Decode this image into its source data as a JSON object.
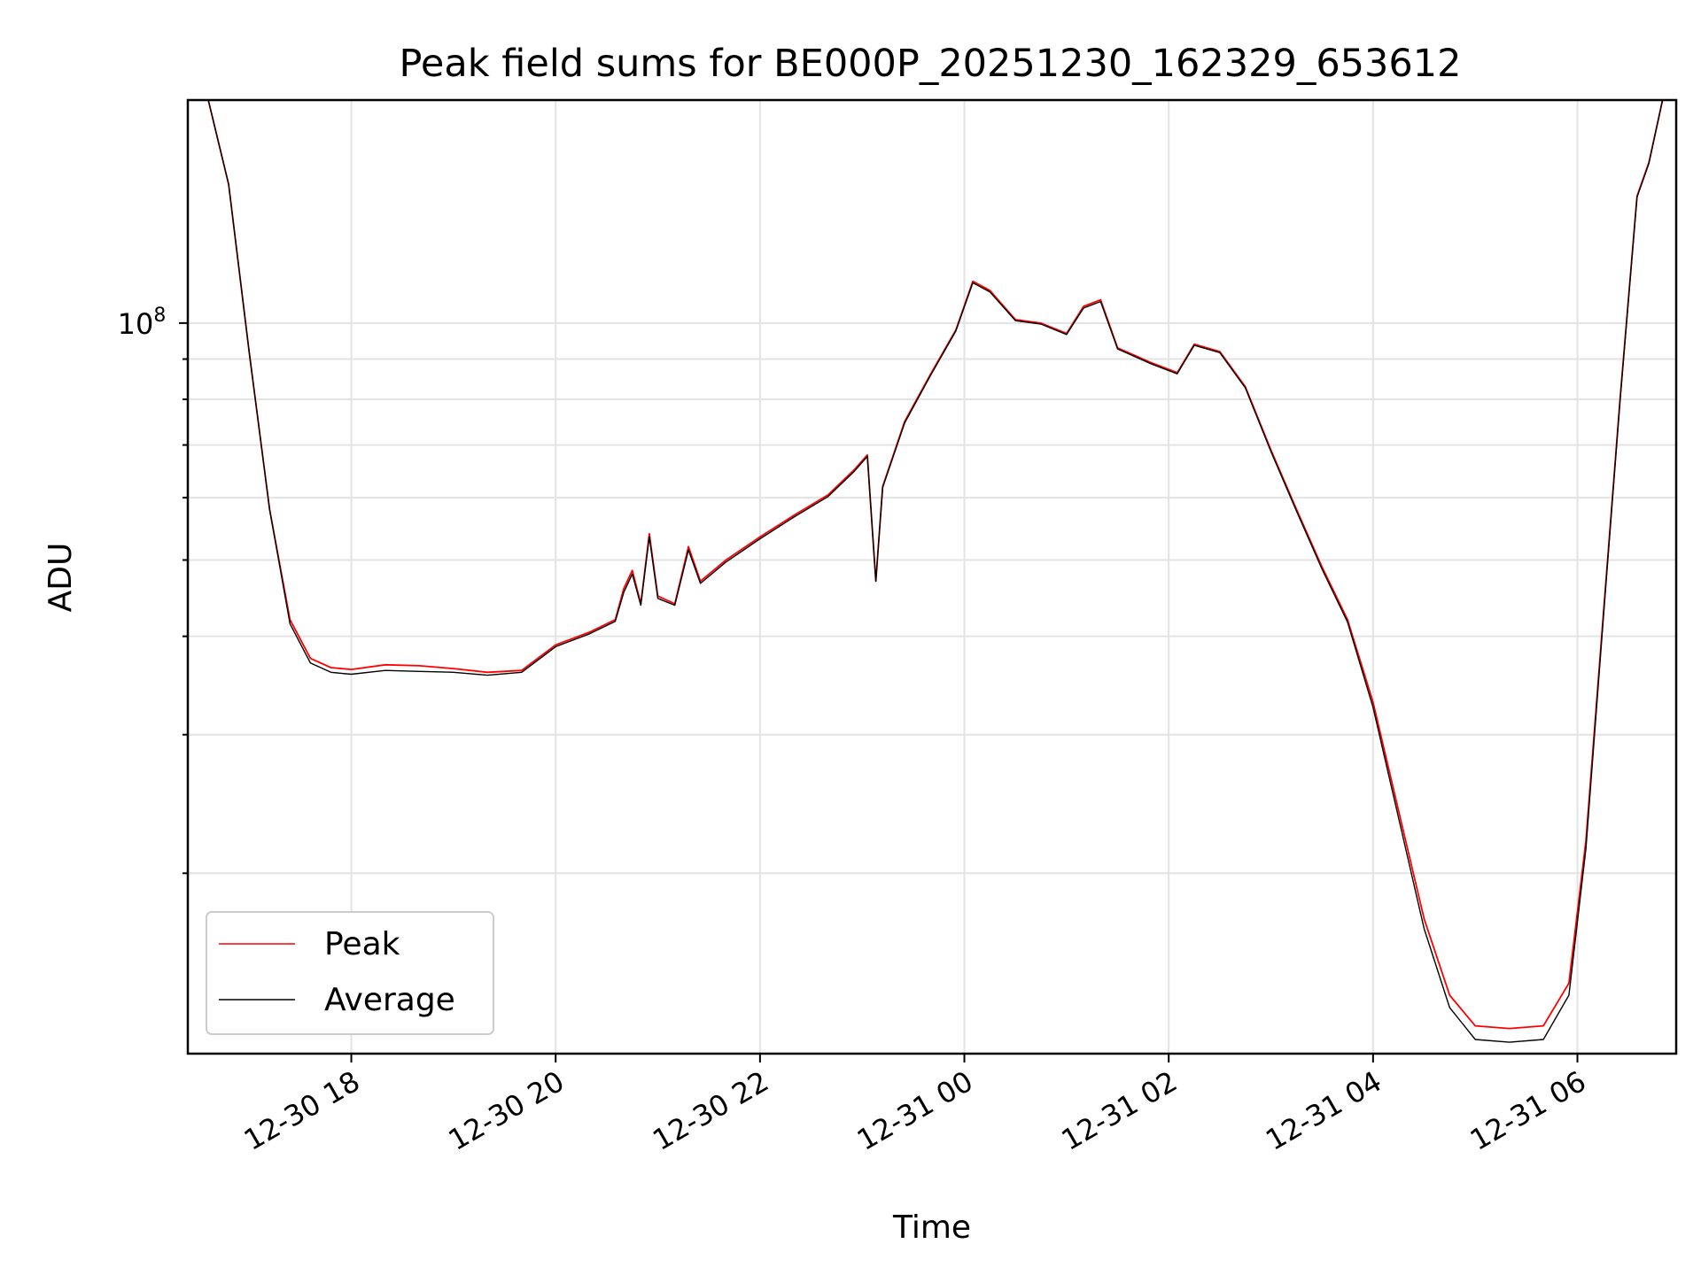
{
  "chart_data": {
    "type": "line",
    "title": "Peak field sums for BE000P_20251230_162329_653612",
    "xlabel": "Time",
    "ylabel": "ADU",
    "yscale": "log",
    "grid": true,
    "legend_position": "lower-left",
    "x_tick_labels": [
      "12-30 18",
      "12-30 20",
      "12-30 22",
      "12-31 00",
      "12-31 02",
      "12-31 04",
      "12-31 06"
    ],
    "x_ticks": [
      "2025-12-30 18:00",
      "2025-12-30 20:00",
      "2025-12-30 22:00",
      "2025-12-31 00:00",
      "2025-12-31 02:00",
      "2025-12-31 04:00",
      "2025-12-31 06:00"
    ],
    "xlim": [
      "2025-12-30 16:24",
      "2025-12-31 06:58"
    ],
    "y_tick_label": "10^8",
    "ylim": [
      11800000,
      192000000
    ],
    "series": [
      {
        "name": "Peak",
        "color": "#ff0000",
        "points": [
          [
            "2025-12-30 16:24",
            192000000
          ],
          [
            "2025-12-30 16:36",
            192000000
          ],
          [
            "2025-12-30 16:48",
            150000000
          ],
          [
            "2025-12-30 17:00",
            92000000
          ],
          [
            "2025-12-30 17:12",
            58000000
          ],
          [
            "2025-12-30 17:24",
            42000000
          ],
          [
            "2025-12-30 17:36",
            37500000
          ],
          [
            "2025-12-30 17:48",
            36500000
          ],
          [
            "2025-12-30 18:00",
            36300000
          ],
          [
            "2025-12-30 18:20",
            36800000
          ],
          [
            "2025-12-30 18:40",
            36700000
          ],
          [
            "2025-12-30 19:00",
            36400000
          ],
          [
            "2025-12-30 19:20",
            36000000
          ],
          [
            "2025-12-30 19:40",
            36200000
          ],
          [
            "2025-12-30 20:00",
            39000000
          ],
          [
            "2025-12-30 20:20",
            40500000
          ],
          [
            "2025-12-30 20:35",
            42000000
          ],
          [
            "2025-12-30 20:40",
            46000000
          ],
          [
            "2025-12-30 20:45",
            48500000
          ],
          [
            "2025-12-30 20:50",
            44000000
          ],
          [
            "2025-12-30 20:55",
            54000000
          ],
          [
            "2025-12-30 21:00",
            45000000
          ],
          [
            "2025-12-30 21:10",
            44000000
          ],
          [
            "2025-12-30 21:18",
            52000000
          ],
          [
            "2025-12-30 21:25",
            47000000
          ],
          [
            "2025-12-30 21:40",
            50000000
          ],
          [
            "2025-12-30 22:00",
            53500000
          ],
          [
            "2025-12-30 22:20",
            57000000
          ],
          [
            "2025-12-30 22:40",
            60500000
          ],
          [
            "2025-12-30 22:55",
            65000000
          ],
          [
            "2025-12-30 23:03",
            68000000
          ],
          [
            "2025-12-30 23:08",
            47000000
          ],
          [
            "2025-12-30 23:12",
            62000000
          ],
          [
            "2025-12-30 23:25",
            75000000
          ],
          [
            "2025-12-30 23:40",
            86000000
          ],
          [
            "2025-12-30 23:55",
            98000000
          ],
          [
            "2025-12-31 00:05",
            113000000
          ],
          [
            "2025-12-31 00:15",
            110000000
          ],
          [
            "2025-12-31 00:30",
            101000000
          ],
          [
            "2025-12-31 00:45",
            100000000
          ],
          [
            "2025-12-31 01:00",
            97000000
          ],
          [
            "2025-12-31 01:10",
            105000000
          ],
          [
            "2025-12-31 01:20",
            107000000
          ],
          [
            "2025-12-31 01:30",
            93000000
          ],
          [
            "2025-12-31 01:50",
            89000000
          ],
          [
            "2025-12-31 02:05",
            86500000
          ],
          [
            "2025-12-31 02:15",
            94000000
          ],
          [
            "2025-12-31 02:30",
            92000000
          ],
          [
            "2025-12-31 02:45",
            83000000
          ],
          [
            "2025-12-31 03:00",
            69000000
          ],
          [
            "2025-12-31 03:15",
            58000000
          ],
          [
            "2025-12-31 03:30",
            49000000
          ],
          [
            "2025-12-31 03:45",
            42000000
          ],
          [
            "2025-12-31 04:00",
            33000000
          ],
          [
            "2025-12-31 04:15",
            24000000
          ],
          [
            "2025-12-31 04:30",
            17500000
          ],
          [
            "2025-12-31 04:45",
            14000000
          ],
          [
            "2025-12-31 05:00",
            12800000
          ],
          [
            "2025-12-31 05:20",
            12700000
          ],
          [
            "2025-12-31 05:40",
            12800000
          ],
          [
            "2025-12-31 05:55",
            14500000
          ],
          [
            "2025-12-31 06:05",
            22000000
          ],
          [
            "2025-12-31 06:15",
            42000000
          ],
          [
            "2025-12-31 06:25",
            80000000
          ],
          [
            "2025-12-31 06:35",
            145000000
          ],
          [
            "2025-12-31 06:42",
            160000000
          ],
          [
            "2025-12-31 06:50",
            192000000
          ],
          [
            "2025-12-31 06:58",
            192000000
          ]
        ]
      },
      {
        "name": "Average",
        "color": "#000000",
        "points": [
          [
            "2025-12-30 16:24",
            192000000
          ],
          [
            "2025-12-30 16:36",
            192000000
          ],
          [
            "2025-12-30 16:48",
            150000000
          ],
          [
            "2025-12-30 17:00",
            92000000
          ],
          [
            "2025-12-30 17:12",
            58000000
          ],
          [
            "2025-12-30 17:24",
            41500000
          ],
          [
            "2025-12-30 17:36",
            37000000
          ],
          [
            "2025-12-30 17:48",
            36000000
          ],
          [
            "2025-12-30 18:00",
            35800000
          ],
          [
            "2025-12-30 18:20",
            36200000
          ],
          [
            "2025-12-30 18:40",
            36100000
          ],
          [
            "2025-12-30 19:00",
            36000000
          ],
          [
            "2025-12-30 19:20",
            35700000
          ],
          [
            "2025-12-30 19:40",
            36000000
          ],
          [
            "2025-12-30 20:00",
            38800000
          ],
          [
            "2025-12-30 20:20",
            40300000
          ],
          [
            "2025-12-30 20:35",
            41800000
          ],
          [
            "2025-12-30 20:40",
            45500000
          ],
          [
            "2025-12-30 20:45",
            48000000
          ],
          [
            "2025-12-30 20:50",
            43800000
          ],
          [
            "2025-12-30 20:55",
            53500000
          ],
          [
            "2025-12-30 21:00",
            44700000
          ],
          [
            "2025-12-30 21:10",
            43800000
          ],
          [
            "2025-12-30 21:18",
            51500000
          ],
          [
            "2025-12-30 21:25",
            46700000
          ],
          [
            "2025-12-30 21:40",
            49700000
          ],
          [
            "2025-12-30 22:00",
            53200000
          ],
          [
            "2025-12-30 22:20",
            56700000
          ],
          [
            "2025-12-30 22:40",
            60200000
          ],
          [
            "2025-12-30 22:55",
            64700000
          ],
          [
            "2025-12-30 23:03",
            67700000
          ],
          [
            "2025-12-30 23:08",
            47000000
          ],
          [
            "2025-12-30 23:12",
            61800000
          ],
          [
            "2025-12-30 23:25",
            74700000
          ],
          [
            "2025-12-30 23:40",
            85700000
          ],
          [
            "2025-12-30 23:55",
            97700000
          ],
          [
            "2025-12-31 00:05",
            112500000
          ],
          [
            "2025-12-31 00:15",
            109500000
          ],
          [
            "2025-12-31 00:30",
            100700000
          ],
          [
            "2025-12-31 00:45",
            99700000
          ],
          [
            "2025-12-31 01:00",
            96700000
          ],
          [
            "2025-12-31 01:10",
            104500000
          ],
          [
            "2025-12-31 01:20",
            106500000
          ],
          [
            "2025-12-31 01:30",
            92700000
          ],
          [
            "2025-12-31 01:50",
            88700000
          ],
          [
            "2025-12-31 02:05",
            86200000
          ],
          [
            "2025-12-31 02:15",
            93700000
          ],
          [
            "2025-12-31 02:30",
            91700000
          ],
          [
            "2025-12-31 02:45",
            82700000
          ],
          [
            "2025-12-31 03:00",
            68700000
          ],
          [
            "2025-12-31 03:15",
            57700000
          ],
          [
            "2025-12-31 03:30",
            48700000
          ],
          [
            "2025-12-31 03:45",
            41700000
          ],
          [
            "2025-12-31 04:00",
            32500000
          ],
          [
            "2025-12-31 04:15",
            23500000
          ],
          [
            "2025-12-31 04:30",
            17000000
          ],
          [
            "2025-12-31 04:45",
            13500000
          ],
          [
            "2025-12-31 05:00",
            12300000
          ],
          [
            "2025-12-31 05:20",
            12200000
          ],
          [
            "2025-12-31 05:40",
            12300000
          ],
          [
            "2025-12-31 05:55",
            14000000
          ],
          [
            "2025-12-31 06:05",
            21500000
          ],
          [
            "2025-12-31 06:15",
            41500000
          ],
          [
            "2025-12-31 06:25",
            79500000
          ],
          [
            "2025-12-31 06:35",
            144500000
          ],
          [
            "2025-12-31 06:42",
            159500000
          ],
          [
            "2025-12-31 06:50",
            192000000
          ],
          [
            "2025-12-31 06:58",
            192000000
          ]
        ]
      }
    ]
  }
}
